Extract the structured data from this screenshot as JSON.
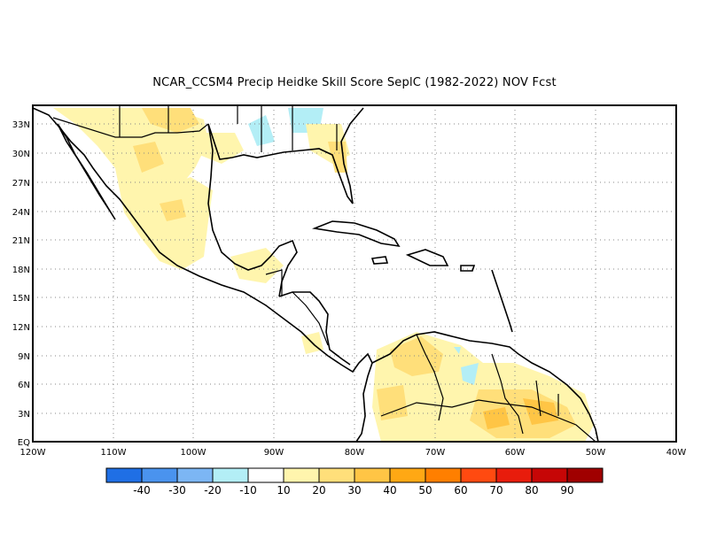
{
  "title": "NCAR_CCSM4 Precip Heidke Skill Score SeplC (1982-2022) NOV Fcst",
  "lat_labels": [
    "33N",
    "30N",
    "27N",
    "24N",
    "21N",
    "18N",
    "15N",
    "12N",
    "9N",
    "6N",
    "3N",
    "EQ"
  ],
  "lon_labels": [
    "120W",
    "110W",
    "100W",
    "90W",
    "80W",
    "70W",
    "60W",
    "50W",
    "40W"
  ],
  "colorbar": {
    "colors": [
      "#1f6fe5",
      "#4a93ee",
      "#7cb6f4",
      "#b3eef6",
      "#ffffff",
      "#fff5ad",
      "#ffdf7a",
      "#ffc545",
      "#ffa814",
      "#ff7f00",
      "#ff4a10",
      "#e81c0c",
      "#c60606",
      "#a00000"
    ],
    "labels": [
      "-40",
      "-30",
      "-20",
      "-10",
      "10",
      "20",
      "30",
      "40",
      "50",
      "60",
      "70",
      "80",
      "90"
    ]
  },
  "map": {
    "lon_range": [
      -120,
      -40
    ],
    "lat_range": [
      0,
      35
    ],
    "grid": "dotted"
  }
}
